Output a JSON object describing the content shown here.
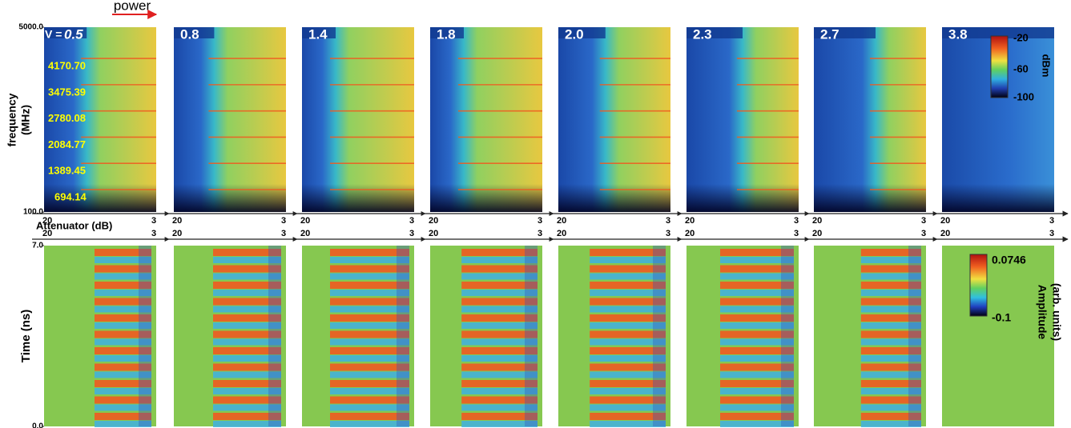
{
  "figure": {
    "annotation": "power",
    "top": {
      "ylabel": [
        "frequency",
        "(MHz)"
      ],
      "ylim": [
        100,
        5000
      ],
      "yticks": [
        {
          "value": 100,
          "label": "100.0"
        },
        {
          "value": 5000,
          "label": "5000.0"
        }
      ],
      "harmonics": [
        {
          "value": 4170.7,
          "label": "4170.70"
        },
        {
          "value": 3475.39,
          "label": "3475.39"
        },
        {
          "value": 2780.08,
          "label": "2780.08"
        },
        {
          "value": 2084.77,
          "label": "2084.77"
        },
        {
          "value": 1389.45,
          "label": "1389.45"
        },
        {
          "value": 694.14,
          "label": "694.14"
        }
      ],
      "xlabel": "Attenuator (dB)",
      "colorbar": {
        "ticks": [
          "-20",
          "-60",
          "-100"
        ],
        "label": "dBm"
      }
    },
    "voltage_prefix": "V =",
    "panels": [
      "0.5",
      "0.8",
      "1.4",
      "1.8",
      "2.0",
      "2.3",
      "2.7",
      "3.8"
    ],
    "x_range": [
      "20",
      "3"
    ],
    "bottom": {
      "ylabel": "Time (ns)",
      "ylim": [
        0,
        7
      ],
      "yticks": [
        {
          "value": 0,
          "label": "0.0"
        },
        {
          "value": 7,
          "label": "7.0"
        }
      ],
      "colorbar": {
        "ticks": [
          "0.0746",
          "-0.1"
        ],
        "label": [
          "Amplitude",
          "(arb. units)"
        ]
      }
    }
  }
}
